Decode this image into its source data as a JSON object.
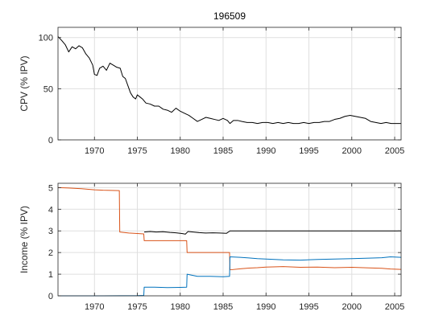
{
  "chart_data": [
    {
      "type": "line",
      "title": "196509",
      "xlabel": "",
      "ylabel": "CPV (% IPV)",
      "xlim": [
        1965.75,
        2005.75
      ],
      "ylim": [
        0,
        110
      ],
      "xticks": [
        1970,
        1975,
        1980,
        1985,
        1990,
        1995,
        2000,
        2005
      ],
      "yticks": [
        0,
        50,
        100
      ],
      "grid": true,
      "series": [
        {
          "color": "#000000",
          "x": [
            1965.75,
            1966.2,
            1966.6,
            1967.0,
            1967.4,
            1967.8,
            1968.2,
            1968.6,
            1969.0,
            1969.4,
            1969.8,
            1970.0,
            1970.3,
            1970.6,
            1971.0,
            1971.4,
            1971.8,
            1972.2,
            1972.6,
            1973.0,
            1973.3,
            1973.6,
            1973.9,
            1974.2,
            1974.5,
            1974.8,
            1975.0,
            1975.3,
            1975.6,
            1976.0,
            1976.5,
            1977.0,
            1977.5,
            1978.0,
            1978.5,
            1979.0,
            1979.5,
            1980.0,
            1980.5,
            1981.0,
            1981.5,
            1982.0,
            1982.5,
            1983.0,
            1983.5,
            1984.0,
            1984.5,
            1985.0,
            1985.5,
            1985.8,
            1986.2,
            1986.7,
            1987.2,
            1987.8,
            1988.4,
            1989.0,
            1989.6,
            1990.2,
            1990.8,
            1991.4,
            1992.0,
            1992.6,
            1993.2,
            1993.8,
            1994.4,
            1995.0,
            1995.6,
            1996.2,
            1996.8,
            1997.4,
            1998.0,
            1998.6,
            1999.2,
            1999.8,
            2000.4,
            2001.0,
            2001.6,
            2002.2,
            2002.8,
            2003.4,
            2004.0,
            2004.6,
            2005.2,
            2005.75
          ],
          "y": [
            101,
            97,
            93,
            86,
            91,
            89,
            92,
            90,
            84,
            80,
            73,
            64,
            63,
            70,
            72,
            68,
            75,
            73,
            71,
            70,
            62,
            60,
            53,
            46,
            42,
            40,
            44,
            42,
            40,
            36,
            35,
            33,
            33,
            30,
            29,
            27,
            31,
            28,
            26,
            24,
            21,
            18,
            20,
            22,
            21,
            20,
            19,
            21,
            19,
            16,
            19,
            19,
            18,
            17,
            17,
            16,
            17,
            17,
            16,
            17,
            16,
            17,
            16,
            16,
            17,
            16,
            17,
            17,
            18,
            18,
            20,
            21,
            23,
            24,
            23,
            22,
            21,
            18,
            17,
            16,
            17,
            16,
            16,
            16
          ]
        }
      ]
    },
    {
      "type": "line",
      "title": "",
      "xlabel": "",
      "ylabel": "Income (% IPV)",
      "xlim": [
        1965.75,
        2005.75
      ],
      "ylim": [
        0,
        5.2
      ],
      "xticks": [
        1970,
        1975,
        1980,
        1985,
        1990,
        1995,
        2000,
        2005
      ],
      "yticks": [
        0,
        1,
        2,
        3,
        4,
        5
      ],
      "grid": true,
      "series": [
        {
          "color": "#000000",
          "x": [
            1975.8,
            1976.5,
            1977.2,
            1978.0,
            1978.8,
            1979.5,
            1980.2,
            1980.6,
            1980.9,
            1981.5,
            1982.2,
            1983.0,
            1983.8,
            1984.6,
            1985.4,
            1985.8,
            1986.5,
            1990.0,
            1995.0,
            2000.0,
            2005.75
          ],
          "y": [
            2.95,
            2.97,
            2.95,
            2.96,
            2.93,
            2.91,
            2.88,
            2.85,
            2.97,
            2.95,
            2.92,
            2.9,
            2.91,
            2.9,
            2.89,
            3.0,
            3.0,
            3.0,
            3.0,
            3.0,
            3.0
          ]
        },
        {
          "color": "#d95319",
          "x": [
            1965.75,
            1967.0,
            1968.5,
            1970.0,
            1971.0,
            1972.0,
            1972.9,
            1972.95,
            1974.0,
            1975.0,
            1975.75,
            1975.8,
            1977.0,
            1978.5,
            1980.0,
            1980.75,
            1980.8,
            1982.0,
            1983.5,
            1985.0,
            1985.75,
            1985.8,
            1987.0,
            1988.0,
            1989.0,
            1990.0,
            1992.0,
            1994.0,
            1996.0,
            1998.0,
            2000.0,
            2002.0,
            2003.5,
            2004.5,
            2005.75
          ],
          "y": [
            5.0,
            4.98,
            4.95,
            4.9,
            4.88,
            4.87,
            4.86,
            2.95,
            2.9,
            2.88,
            2.86,
            2.55,
            2.55,
            2.55,
            2.55,
            2.55,
            2.0,
            2.0,
            2.0,
            2.0,
            2.0,
            1.2,
            1.25,
            1.28,
            1.3,
            1.33,
            1.35,
            1.32,
            1.33,
            1.3,
            1.32,
            1.29,
            1.27,
            1.24,
            1.22
          ]
        },
        {
          "color": "#0072bd",
          "x": [
            1965.75,
            1970.0,
            1975.0,
            1975.75,
            1975.8,
            1977.0,
            1978.5,
            1980.0,
            1980.75,
            1980.8,
            1982.0,
            1983.5,
            1985.0,
            1985.75,
            1985.8,
            1987.0,
            1988.0,
            1989.0,
            1990.0,
            1991.0,
            1992.0,
            1994.0,
            1996.0,
            1998.0,
            2000.0,
            2002.0,
            2003.5,
            2004.5,
            2005.75
          ],
          "y": [
            0.0,
            0.0,
            0.01,
            0.02,
            0.4,
            0.4,
            0.38,
            0.39,
            0.4,
            1.0,
            0.9,
            0.9,
            0.88,
            0.9,
            1.8,
            1.78,
            1.75,
            1.72,
            1.7,
            1.68,
            1.66,
            1.65,
            1.68,
            1.7,
            1.72,
            1.74,
            1.76,
            1.8,
            1.78
          ]
        }
      ]
    }
  ]
}
